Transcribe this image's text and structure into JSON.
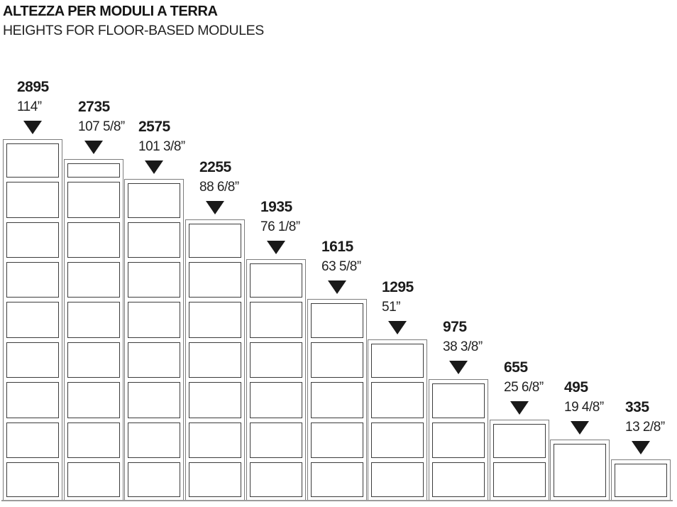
{
  "title_it": "ALTEZZA PER MODULI A TERRA",
  "title_en": "HEIGHTS FOR FLOOR-BASED MODULES",
  "plinth_mm": 45,
  "icons": {
    "marker": "filled-down-triangle"
  },
  "colors": {
    "frame_line": "#7d7d7d",
    "compartment_line": "#3c3c3c",
    "marker": "#191919",
    "text": "#1c1c1c",
    "floor_line": "#9b9b9b"
  },
  "modules": [
    {
      "label_mm": "2895",
      "label_inches": "114”",
      "height_mm": 2895,
      "shelves_mm": [
        2575,
        2255,
        1935,
        1615,
        1295,
        975,
        655,
        335
      ]
    },
    {
      "label_mm": "2735",
      "label_inches": "107 5/8”",
      "height_mm": 2735,
      "shelves_mm": [
        2575,
        2255,
        1935,
        1615,
        1295,
        975,
        655,
        335
      ]
    },
    {
      "label_mm": "2575",
      "label_inches": "101 3/8”",
      "height_mm": 2575,
      "shelves_mm": [
        2255,
        1935,
        1615,
        1295,
        975,
        655,
        335
      ]
    },
    {
      "label_mm": "2255",
      "label_inches": "88 6/8”",
      "height_mm": 2255,
      "shelves_mm": [
        1935,
        1615,
        1295,
        975,
        655,
        335
      ]
    },
    {
      "label_mm": "1935",
      "label_inches": "76 1/8”",
      "height_mm": 1935,
      "shelves_mm": [
        1615,
        1295,
        975,
        655,
        335
      ]
    },
    {
      "label_mm": "1615",
      "label_inches": "63 5/8”",
      "height_mm": 1615,
      "shelves_mm": [
        1295,
        975,
        655,
        335
      ]
    },
    {
      "label_mm": "1295",
      "label_inches": "51”",
      "height_mm": 1295,
      "shelves_mm": [
        975,
        655,
        335
      ]
    },
    {
      "label_mm": "975",
      "label_inches": "38 3/8”",
      "height_mm": 975,
      "shelves_mm": [
        655,
        335
      ]
    },
    {
      "label_mm": "655",
      "label_inches": "25 6/8”",
      "height_mm": 655,
      "shelves_mm": [
        335
      ]
    },
    {
      "label_mm": "495",
      "label_inches": "19 4/8”",
      "height_mm": 495,
      "shelves_mm": []
    },
    {
      "label_mm": "335",
      "label_inches": "13 2/8”",
      "height_mm": 335,
      "shelves_mm": []
    }
  ]
}
